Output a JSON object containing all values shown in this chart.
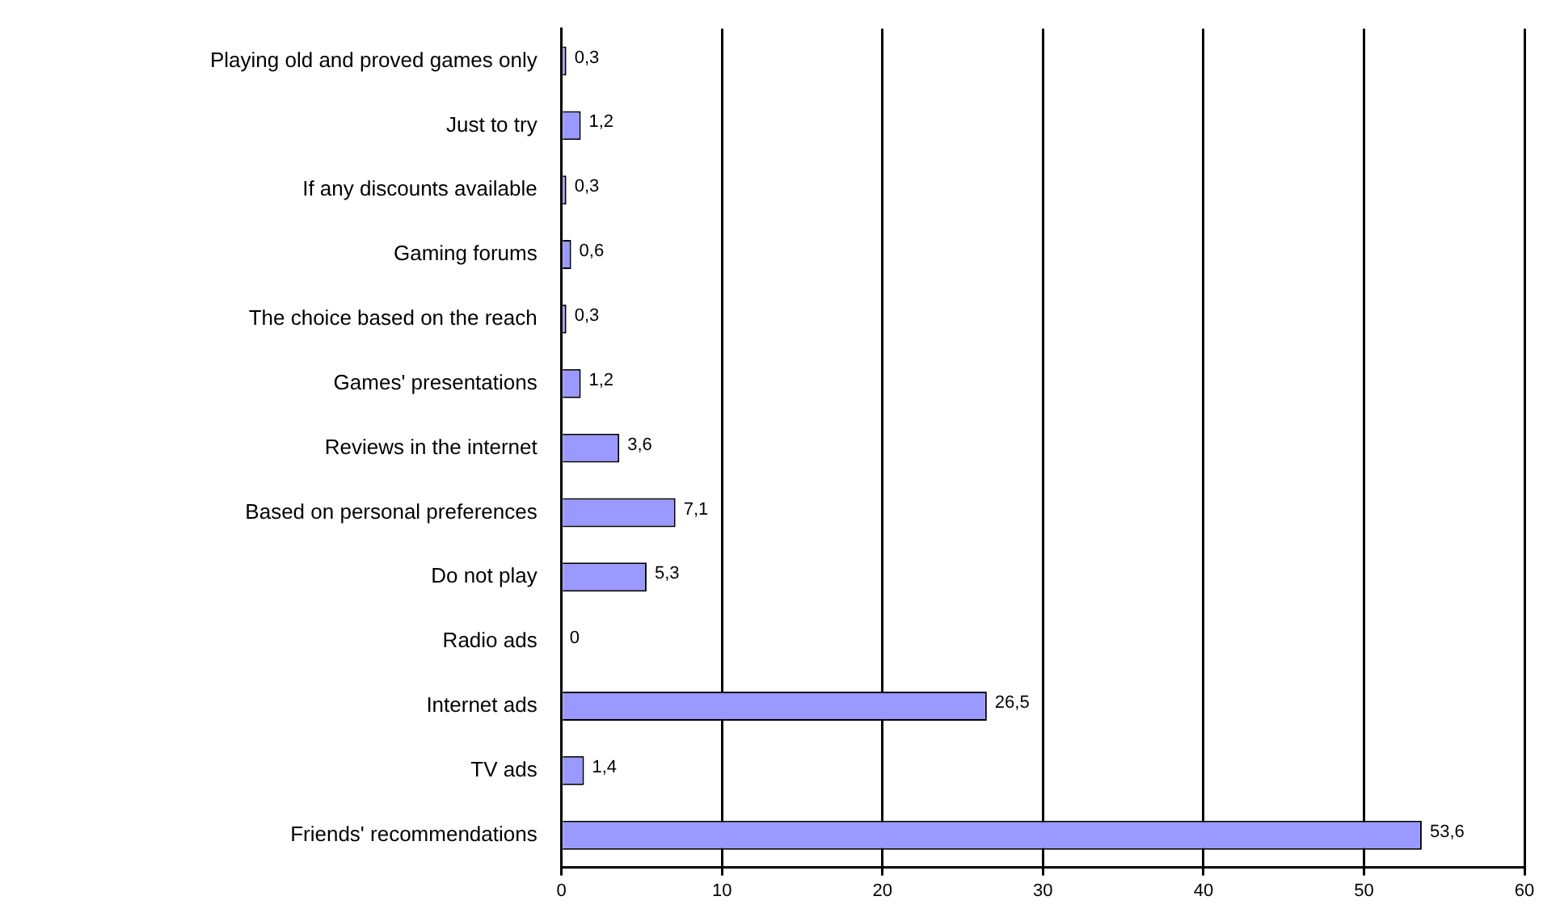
{
  "chart_data": {
    "type": "bar",
    "orientation": "horizontal",
    "categories": [
      "Playing old and proved games only",
      "Just to try",
      "If any discounts available",
      "Gaming forums",
      "The choice based on the reach",
      "Games' presentations",
      "Reviews in the internet",
      "Based on personal preferences",
      "Do not play",
      "Radio ads",
      "Internet ads",
      "TV ads",
      "Friends' recommendations"
    ],
    "values": [
      0.3,
      1.2,
      0.3,
      0.6,
      0.3,
      1.2,
      3.6,
      7.1,
      5.3,
      0,
      26.5,
      1.4,
      53.6
    ],
    "value_labels": [
      "0,3",
      "1,2",
      "0,3",
      "0,6",
      "0,3",
      "1,2",
      "3,6",
      "7,1",
      "5,3",
      "0",
      "26,5",
      "1,4",
      "53,6"
    ],
    "color": "#9999ff",
    "xlim": [
      0,
      60
    ],
    "xticks": [
      0,
      10,
      20,
      30,
      40,
      50,
      60
    ],
    "grid": "x",
    "legend": false
  }
}
